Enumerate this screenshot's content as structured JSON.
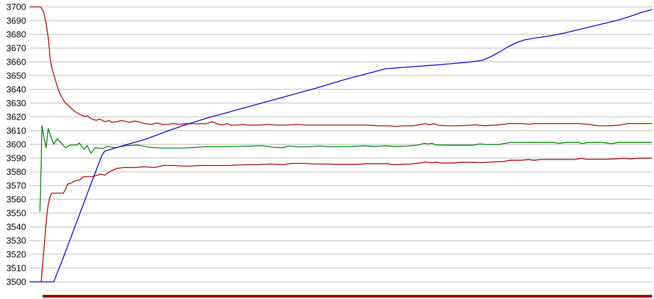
{
  "chart_data": {
    "type": "line",
    "title": "",
    "xlabel": "",
    "ylabel": "",
    "grid": true,
    "legend": false,
    "colors": {
      "grid_line": "#c6c6c6",
      "tick_text": "#000000",
      "footer_bar": "#990000"
    },
    "y_axis": {
      "min": 3500,
      "max": 3700,
      "tick_step": 10,
      "tick_labels": [
        "3700",
        "3690",
        "3680",
        "3670",
        "3660",
        "3650",
        "3640",
        "3630",
        "3620",
        "3610",
        "3600",
        "3590",
        "3580",
        "3570",
        "3560",
        "3550",
        "3540",
        "3530",
        "3520",
        "3510",
        "3500"
      ]
    },
    "x_axis": {
      "min": 43,
      "max": 947,
      "tick_labels": []
    },
    "series": [
      {
        "name": "upper-red-line",
        "color": "#aa0000",
        "points": [
          [
            43,
            3700
          ],
          [
            59,
            3700
          ],
          [
            63,
            3697
          ],
          [
            67,
            3688
          ],
          [
            70,
            3678
          ],
          [
            73,
            3662
          ],
          [
            75,
            3656
          ],
          [
            78,
            3651
          ],
          [
            81,
            3646
          ],
          [
            84,
            3641
          ],
          [
            87,
            3637
          ],
          [
            90,
            3634
          ],
          [
            95,
            3630
          ],
          [
            100,
            3628
          ],
          [
            105,
            3625.5
          ],
          [
            110,
            3623.5
          ],
          [
            115,
            3622
          ],
          [
            120,
            3621
          ],
          [
            124,
            3620
          ],
          [
            127,
            3621
          ],
          [
            131,
            3619
          ],
          [
            136,
            3618
          ],
          [
            140,
            3617.5
          ],
          [
            145,
            3618.5
          ],
          [
            150,
            3617
          ],
          [
            155,
            3616.5
          ],
          [
            158,
            3617.5
          ],
          [
            162,
            3616
          ],
          [
            170,
            3616.5
          ],
          [
            175,
            3617.2
          ],
          [
            180,
            3617
          ],
          [
            188,
            3616
          ],
          [
            196,
            3617
          ],
          [
            204,
            3616
          ],
          [
            212,
            3615
          ],
          [
            220,
            3614.5
          ],
          [
            228,
            3615.5
          ],
          [
            236,
            3614.5
          ],
          [
            244,
            3614.5
          ],
          [
            252,
            3615.2
          ],
          [
            260,
            3614.5
          ],
          [
            270,
            3615
          ],
          [
            285,
            3615
          ],
          [
            300,
            3615
          ],
          [
            308,
            3616.5
          ],
          [
            315,
            3615
          ],
          [
            322,
            3614
          ],
          [
            330,
            3615
          ],
          [
            336,
            3614
          ],
          [
            344,
            3614
          ],
          [
            352,
            3614.5
          ],
          [
            360,
            3614
          ],
          [
            375,
            3614
          ],
          [
            390,
            3614.5
          ],
          [
            400,
            3614
          ],
          [
            415,
            3614
          ],
          [
            430,
            3614.5
          ],
          [
            445,
            3614
          ],
          [
            460,
            3614
          ],
          [
            475,
            3614
          ],
          [
            490,
            3614
          ],
          [
            505,
            3614
          ],
          [
            520,
            3614
          ],
          [
            535,
            3614
          ],
          [
            550,
            3613.5
          ],
          [
            565,
            3613.5
          ],
          [
            575,
            3613
          ],
          [
            585,
            3613.5
          ],
          [
            600,
            3613.5
          ],
          [
            612,
            3614.5
          ],
          [
            618,
            3615
          ],
          [
            624,
            3614.3
          ],
          [
            630,
            3615
          ],
          [
            636,
            3614
          ],
          [
            648,
            3613.5
          ],
          [
            662,
            3613.5
          ],
          [
            676,
            3613.7
          ],
          [
            690,
            3614.2
          ],
          [
            704,
            3613.6
          ],
          [
            718,
            3614
          ],
          [
            732,
            3614.5
          ],
          [
            740,
            3615.2
          ],
          [
            755,
            3615.2
          ],
          [
            768,
            3614.7
          ],
          [
            780,
            3615.2
          ],
          [
            795,
            3615.2
          ],
          [
            810,
            3615.2
          ],
          [
            825,
            3615.2
          ],
          [
            840,
            3615.2
          ],
          [
            855,
            3614.5
          ],
          [
            870,
            3613.5
          ],
          [
            885,
            3613.5
          ],
          [
            900,
            3614
          ],
          [
            912,
            3615.2
          ],
          [
            930,
            3615.2
          ],
          [
            947,
            3615.2
          ]
        ]
      },
      {
        "name": "green-line",
        "color": "#008000",
        "points": [
          [
            58,
            3551
          ],
          [
            60,
            3590
          ],
          [
            61,
            3613.5
          ],
          [
            64,
            3605
          ],
          [
            67,
            3597.5
          ],
          [
            70,
            3611.5
          ],
          [
            73,
            3607
          ],
          [
            78,
            3600
          ],
          [
            83,
            3604
          ],
          [
            89,
            3601
          ],
          [
            95,
            3597.5
          ],
          [
            102,
            3599.5
          ],
          [
            112,
            3599.5
          ],
          [
            115,
            3601
          ],
          [
            122,
            3596.5
          ],
          [
            127,
            3599
          ],
          [
            132,
            3593.5
          ],
          [
            138,
            3597.5
          ],
          [
            150,
            3597
          ],
          [
            155,
            3598.5
          ],
          [
            167,
            3597.5
          ],
          [
            182,
            3599
          ],
          [
            200,
            3599.5
          ],
          [
            215,
            3598
          ],
          [
            235,
            3597.3
          ],
          [
            265,
            3597.3
          ],
          [
            285,
            3597.8
          ],
          [
            300,
            3598.3
          ],
          [
            340,
            3598.3
          ],
          [
            380,
            3599
          ],
          [
            395,
            3598
          ],
          [
            410,
            3597.5
          ],
          [
            420,
            3598.8
          ],
          [
            432,
            3598.2
          ],
          [
            448,
            3598.2
          ],
          [
            465,
            3598.8
          ],
          [
            480,
            3598.2
          ],
          [
            510,
            3598.4
          ],
          [
            530,
            3598.9
          ],
          [
            545,
            3598.4
          ],
          [
            560,
            3598.9
          ],
          [
            575,
            3598.4
          ],
          [
            590,
            3598.7
          ],
          [
            605,
            3599.3
          ],
          [
            617,
            3600.8
          ],
          [
            622,
            3600.2
          ],
          [
            627,
            3600.8
          ],
          [
            633,
            3599.6
          ],
          [
            650,
            3599.4
          ],
          [
            670,
            3599.4
          ],
          [
            688,
            3599.4
          ],
          [
            697,
            3600.3
          ],
          [
            707,
            3599.8
          ],
          [
            725,
            3599.9
          ],
          [
            740,
            3601.3
          ],
          [
            775,
            3601.4
          ],
          [
            805,
            3601.4
          ],
          [
            812,
            3600.7
          ],
          [
            822,
            3601.4
          ],
          [
            840,
            3601.4
          ],
          [
            846,
            3600.6
          ],
          [
            854,
            3601.4
          ],
          [
            875,
            3601.4
          ],
          [
            888,
            3600.5
          ],
          [
            898,
            3601.4
          ],
          [
            920,
            3601.4
          ],
          [
            947,
            3601.4
          ]
        ]
      },
      {
        "name": "lower-red-line",
        "color": "#aa0000",
        "points": [
          [
            60,
            3500
          ],
          [
            62,
            3514
          ],
          [
            64,
            3525
          ],
          [
            66,
            3537
          ],
          [
            68,
            3548
          ],
          [
            70,
            3556
          ],
          [
            72,
            3561
          ],
          [
            75,
            3564.5
          ],
          [
            92,
            3564.5
          ],
          [
            95,
            3567
          ],
          [
            98,
            3571
          ],
          [
            104,
            3572
          ],
          [
            109,
            3573.5
          ],
          [
            116,
            3574.2
          ],
          [
            121,
            3576.5
          ],
          [
            134,
            3576.5
          ],
          [
            139,
            3577.2
          ],
          [
            146,
            3578.4
          ],
          [
            152,
            3577.5
          ],
          [
            157,
            3579.5
          ],
          [
            163,
            3581
          ],
          [
            170,
            3582.5
          ],
          [
            180,
            3583.2
          ],
          [
            196,
            3583.2
          ],
          [
            210,
            3583.7
          ],
          [
            225,
            3583.2
          ],
          [
            238,
            3584.7
          ],
          [
            252,
            3584.7
          ],
          [
            264,
            3584.2
          ],
          [
            277,
            3584.2
          ],
          [
            292,
            3584.7
          ],
          [
            315,
            3584.7
          ],
          [
            335,
            3584.7
          ],
          [
            355,
            3585.2
          ],
          [
            375,
            3585.2
          ],
          [
            392,
            3585.7
          ],
          [
            410,
            3585.2
          ],
          [
            425,
            3586.2
          ],
          [
            442,
            3586.2
          ],
          [
            456,
            3585.7
          ],
          [
            472,
            3585.7
          ],
          [
            488,
            3585.4
          ],
          [
            505,
            3585.4
          ],
          [
            518,
            3585.4
          ],
          [
            532,
            3585.9
          ],
          [
            548,
            3585.9
          ],
          [
            562,
            3585.9
          ],
          [
            572,
            3585.2
          ],
          [
            584,
            3585.4
          ],
          [
            597,
            3585.7
          ],
          [
            610,
            3586.4
          ],
          [
            618,
            3587.2
          ],
          [
            626,
            3586.6
          ],
          [
            633,
            3587
          ],
          [
            642,
            3586.4
          ],
          [
            656,
            3586.4
          ],
          [
            670,
            3586.9
          ],
          [
            686,
            3586.9
          ],
          [
            700,
            3586.7
          ],
          [
            715,
            3587.2
          ],
          [
            730,
            3587.4
          ],
          [
            741,
            3588.4
          ],
          [
            756,
            3588.4
          ],
          [
            768,
            3588.9
          ],
          [
            776,
            3588.4
          ],
          [
            786,
            3589
          ],
          [
            805,
            3589
          ],
          [
            822,
            3589
          ],
          [
            836,
            3589
          ],
          [
            844,
            3589.9
          ],
          [
            851,
            3589.2
          ],
          [
            865,
            3589.2
          ],
          [
            880,
            3589.2
          ],
          [
            893,
            3589.4
          ],
          [
            906,
            3589.9
          ],
          [
            916,
            3589.4
          ],
          [
            926,
            3589.9
          ],
          [
            947,
            3589.9
          ]
        ]
      },
      {
        "name": "blue-line",
        "color": "#0000cc",
        "points": [
          [
            43,
            3500
          ],
          [
            78,
            3500
          ],
          [
            90,
            3515
          ],
          [
            105,
            3535
          ],
          [
            120,
            3555
          ],
          [
            135,
            3575
          ],
          [
            148,
            3592
          ],
          [
            152,
            3595
          ],
          [
            165,
            3597
          ],
          [
            182,
            3599.5
          ],
          [
            210,
            3603.5
          ],
          [
            240,
            3609
          ],
          [
            265,
            3613.5
          ],
          [
            300,
            3619
          ],
          [
            340,
            3624.5
          ],
          [
            380,
            3630
          ],
          [
            420,
            3635.5
          ],
          [
            460,
            3641
          ],
          [
            500,
            3647
          ],
          [
            530,
            3651
          ],
          [
            560,
            3655
          ],
          [
            600,
            3656.5
          ],
          [
            640,
            3658
          ],
          [
            675,
            3659.5
          ],
          [
            700,
            3661
          ],
          [
            712,
            3663.5
          ],
          [
            725,
            3667
          ],
          [
            738,
            3671
          ],
          [
            750,
            3674
          ],
          [
            762,
            3676
          ],
          [
            780,
            3677.5
          ],
          [
            800,
            3679
          ],
          [
            820,
            3681
          ],
          [
            845,
            3684
          ],
          [
            870,
            3687
          ],
          [
            895,
            3690
          ],
          [
            915,
            3693
          ],
          [
            932,
            3696
          ],
          [
            947,
            3698
          ]
        ]
      }
    ],
    "footer_bar": {
      "color": "#990000"
    }
  }
}
